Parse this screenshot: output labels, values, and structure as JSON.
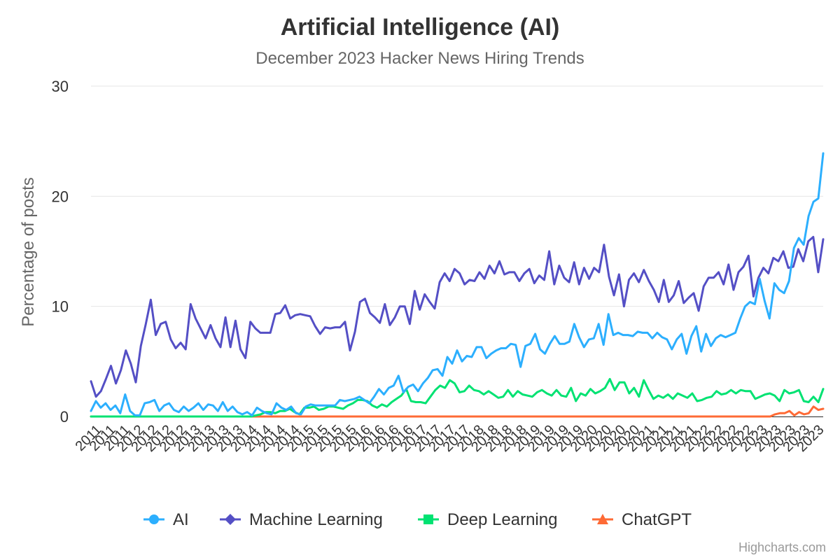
{
  "chart_data": {
    "type": "line",
    "title": "Artificial Intelligence (AI)",
    "subtitle": "December 2023 Hacker News Hiring Trends",
    "ylabel": "Percentage of posts",
    "xlabel": "",
    "ylim": [
      0,
      30
    ],
    "y_ticks": [
      0,
      10,
      20,
      30
    ],
    "grid": true,
    "legend_position": "bottom",
    "credits": "Highcharts.com",
    "x_ticks": [
      "2011",
      "2011",
      "2011",
      "2012",
      "2012",
      "2012",
      "2012",
      "2013",
      "2013",
      "2013",
      "2013",
      "2014",
      "2014",
      "2014",
      "2014",
      "2015",
      "2015",
      "2015",
      "2015",
      "2016",
      "2016",
      "2016",
      "2016",
      "2017",
      "2017",
      "2017",
      "2017",
      "2018",
      "2018",
      "2018",
      "2018",
      "2019",
      "2019",
      "2019",
      "2019",
      "2020",
      "2020",
      "2020",
      "2020",
      "2021",
      "2021",
      "2021",
      "2021",
      "2022",
      "2022",
      "2022",
      "2022",
      "2023",
      "2023",
      "2023",
      "2023",
      "2023"
    ],
    "series": [
      {
        "name": "AI",
        "color": "#2caffe",
        "marker": "circle",
        "values": [
          0.5,
          1.4,
          0.8,
          1.2,
          0.6,
          1.0,
          0.3,
          2.0,
          0.5,
          0.1,
          0.1,
          1.2,
          1.3,
          1.5,
          0.5,
          1.0,
          1.2,
          0.6,
          0.4,
          0.9,
          0.5,
          0.8,
          1.2,
          0.6,
          1.1,
          1.0,
          0.5,
          1.3,
          0.5,
          0.9,
          0.4,
          0.2,
          0.4,
          0.1,
          0.8,
          0.5,
          0.3,
          0.2,
          1.2,
          0.8,
          0.6,
          0.9,
          0.3,
          0.2,
          0.9,
          1.1,
          1.0,
          1.0,
          1.0,
          1.0,
          1.0,
          1.5,
          1.4,
          1.5,
          1.6,
          1.8,
          1.5,
          1.2,
          1.8,
          2.5,
          2.0,
          2.6,
          2.8,
          3.7,
          2.2,
          2.7,
          2.9,
          2.3,
          3.0,
          3.5,
          4.2,
          4.3,
          3.7,
          5.4,
          4.8,
          6.0,
          5.0,
          5.5,
          5.4,
          6.3,
          6.3,
          5.3,
          5.7,
          6.0,
          6.2,
          6.2,
          6.6,
          6.5,
          4.5,
          6.4,
          6.6,
          7.5,
          6.1,
          5.7,
          6.6,
          7.3,
          6.6,
          6.6,
          6.8,
          8.4,
          7.2,
          6.3,
          7.0,
          7.1,
          8.4,
          6.5,
          9.3,
          7.4,
          7.6,
          7.4,
          7.4,
          7.3,
          7.7,
          7.6,
          7.6,
          7.1,
          7.6,
          7.2,
          7.0,
          6.1,
          7.0,
          7.5,
          5.7,
          7.3,
          8.2,
          5.9,
          7.5,
          6.4,
          7.1,
          7.4,
          7.2,
          7.4,
          7.6,
          8.9,
          10.0,
          10.4,
          10.2,
          12.5,
          10.5,
          8.9,
          12.1,
          11.5,
          11.2,
          12.3,
          15.3,
          16.2,
          15.6,
          18.2,
          19.5,
          19.8,
          23.9
        ]
      },
      {
        "name": "Machine Learning",
        "color": "#544fc5",
        "marker": "diamond",
        "values": [
          3.2,
          1.8,
          2.3,
          3.4,
          4.6,
          3.0,
          4.2,
          6.0,
          4.8,
          3.1,
          6.4,
          8.4,
          10.6,
          7.4,
          8.4,
          8.6,
          7.0,
          6.2,
          6.7,
          6.1,
          10.2,
          8.9,
          8.0,
          7.1,
          8.3,
          7.1,
          6.3,
          9.0,
          6.3,
          8.7,
          6.1,
          5.3,
          8.6,
          8.0,
          7.6,
          7.6,
          7.6,
          9.3,
          9.4,
          10.1,
          8.9,
          9.2,
          9.3,
          9.2,
          9.1,
          8.2,
          7.5,
          8.1,
          8.0,
          8.1,
          8.1,
          8.6,
          6.0,
          7.7,
          10.4,
          10.7,
          9.4,
          9.0,
          8.5,
          10.2,
          8.3,
          9.0,
          10.0,
          10.0,
          8.4,
          11.4,
          9.7,
          11.1,
          10.4,
          9.8,
          12.2,
          13.0,
          12.3,
          13.4,
          13.0,
          12.0,
          12.4,
          12.3,
          13.1,
          12.5,
          13.7,
          13.0,
          14.1,
          12.9,
          13.1,
          13.1,
          12.3,
          13.0,
          13.4,
          12.1,
          12.8,
          12.4,
          15.0,
          12.0,
          13.7,
          12.6,
          12.2,
          14.0,
          12.0,
          13.5,
          12.5,
          13.5,
          13.1,
          15.6,
          12.7,
          11.0,
          12.9,
          10.0,
          12.4,
          13.0,
          12.2,
          13.3,
          12.3,
          11.5,
          10.4,
          12.4,
          10.4,
          11.0,
          12.3,
          10.3,
          10.8,
          11.2,
          9.6,
          11.8,
          12.6,
          12.6,
          13.1,
          12.0,
          13.8,
          11.5,
          13.1,
          13.6,
          14.6,
          10.9,
          12.6,
          13.5,
          13.0,
          14.4,
          14.1,
          15.0,
          13.5,
          13.6,
          15.2,
          14.1,
          15.9,
          16.3,
          13.1,
          16.1
        ]
      },
      {
        "name": "Deep Learning",
        "color": "#00e272",
        "marker": "square",
        "values": [
          0,
          0,
          0,
          0,
          0,
          0,
          0,
          0,
          0,
          0,
          0,
          0,
          0,
          0,
          0,
          0,
          0,
          0,
          0,
          0,
          0,
          0,
          0,
          0,
          0,
          0,
          0,
          0,
          0,
          0,
          0,
          0,
          0,
          0,
          0.1,
          0.2,
          0.4,
          0.4,
          0.3,
          0.5,
          0.5,
          0.7,
          0.4,
          0.2,
          0.8,
          0.8,
          0.9,
          0.6,
          0.7,
          0.9,
          0.9,
          0.8,
          0.7,
          1.0,
          1.2,
          1.5,
          1.5,
          1.4,
          1.0,
          0.8,
          1.1,
          0.9,
          1.3,
          1.6,
          1.9,
          2.5,
          1.4,
          1.3,
          1.3,
          1.2,
          1.8,
          2.4,
          2.8,
          2.6,
          3.3,
          3.0,
          2.2,
          2.3,
          2.8,
          2.4,
          2.3,
          2.0,
          2.3,
          2.0,
          1.7,
          1.8,
          2.4,
          1.8,
          2.3,
          2.0,
          1.9,
          1.8,
          2.2,
          2.4,
          2.1,
          1.9,
          2.4,
          1.9,
          1.8,
          2.6,
          1.4,
          2.1,
          1.9,
          2.5,
          2.1,
          2.3,
          2.6,
          3.4,
          2.4,
          3.1,
          3.1,
          2.1,
          2.6,
          1.8,
          3.3,
          2.4,
          1.6,
          1.9,
          1.7,
          2.0,
          1.6,
          2.1,
          1.9,
          1.7,
          2.1,
          1.4,
          1.5,
          1.7,
          1.8,
          2.3,
          2.0,
          2.1,
          2.4,
          2.1,
          2.4,
          2.3,
          2.3,
          1.6,
          1.8,
          2.0,
          2.1,
          1.9,
          1.4,
          2.4,
          2.1,
          2.2,
          2.4,
          1.4,
          1.3,
          1.8,
          1.3,
          2.5
        ]
      },
      {
        "name": "ChatGPT",
        "color": "#fe6a35",
        "marker": "triangle",
        "values": [
          0,
          0,
          0,
          0,
          0,
          0,
          0,
          0,
          0,
          0,
          0,
          0,
          0,
          0,
          0,
          0,
          0,
          0,
          0,
          0,
          0,
          0,
          0,
          0,
          0,
          0,
          0,
          0,
          0,
          0,
          0,
          0,
          0,
          0,
          0,
          0,
          0,
          0,
          0,
          0,
          0,
          0,
          0,
          0,
          0,
          0,
          0,
          0,
          0,
          0,
          0,
          0,
          0,
          0,
          0,
          0,
          0,
          0,
          0,
          0,
          0,
          0,
          0,
          0,
          0,
          0,
          0,
          0,
          0,
          0,
          0,
          0,
          0,
          0,
          0,
          0,
          0,
          0,
          0,
          0,
          0,
          0,
          0,
          0,
          0,
          0,
          0,
          0,
          0,
          0,
          0,
          0,
          0,
          0,
          0,
          0,
          0,
          0,
          0,
          0,
          0,
          0,
          0,
          0,
          0,
          0,
          0,
          0,
          0,
          0,
          0,
          0,
          0,
          0,
          0,
          0,
          0,
          0,
          0,
          0,
          0,
          0,
          0,
          0,
          0,
          0,
          0,
          0,
          0,
          0,
          0,
          0,
          0,
          0,
          0,
          0,
          0,
          0,
          0,
          0,
          0,
          0,
          0.2,
          0.3,
          0.3,
          0.5,
          0.1,
          0.4,
          0.2,
          0.3,
          0.9,
          0.6,
          0.7
        ]
      }
    ]
  }
}
